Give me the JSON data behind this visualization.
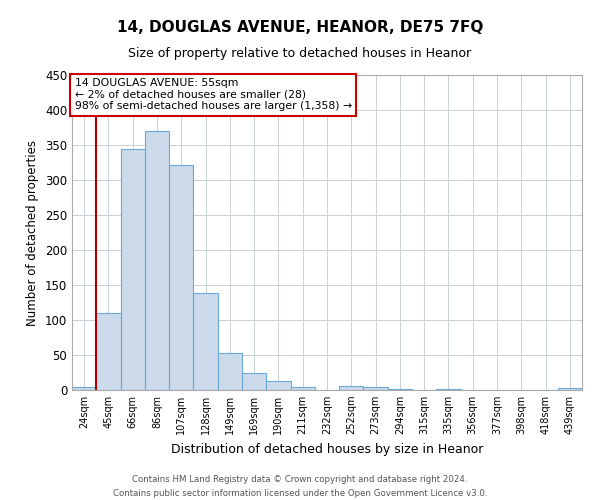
{
  "title": "14, DOUGLAS AVENUE, HEANOR, DE75 7FQ",
  "subtitle": "Size of property relative to detached houses in Heanor",
  "xlabel": "Distribution of detached houses by size in Heanor",
  "ylabel": "Number of detached properties",
  "bar_color": "#ccdaeb",
  "bar_edge_color": "#6aaad4",
  "background_color": "#ffffff",
  "grid_color": "#c8d0d8",
  "bin_labels": [
    "24sqm",
    "45sqm",
    "66sqm",
    "86sqm",
    "107sqm",
    "128sqm",
    "149sqm",
    "169sqm",
    "190sqm",
    "211sqm",
    "232sqm",
    "252sqm",
    "273sqm",
    "294sqm",
    "315sqm",
    "335sqm",
    "356sqm",
    "377sqm",
    "398sqm",
    "418sqm",
    "439sqm"
  ],
  "bar_values": [
    5,
    110,
    345,
    370,
    322,
    138,
    53,
    25,
    13,
    5,
    0,
    6,
    5,
    2,
    0,
    1,
    0,
    0,
    0,
    0,
    3
  ],
  "ylim": [
    0,
    450
  ],
  "yticks": [
    0,
    50,
    100,
    150,
    200,
    250,
    300,
    350,
    400,
    450
  ],
  "vline_color": "#aa0000",
  "annotation_title": "14 DOUGLAS AVENUE: 55sqm",
  "annotation_line2": "← 2% of detached houses are smaller (28)",
  "annotation_line3": "98% of semi-detached houses are larger (1,358) →",
  "annotation_box_color": "#ffffff",
  "annotation_box_edge_color": "#cc0000",
  "footer_line1": "Contains HM Land Registry data © Crown copyright and database right 2024.",
  "footer_line2": "Contains public sector information licensed under the Open Government Licence v3.0."
}
